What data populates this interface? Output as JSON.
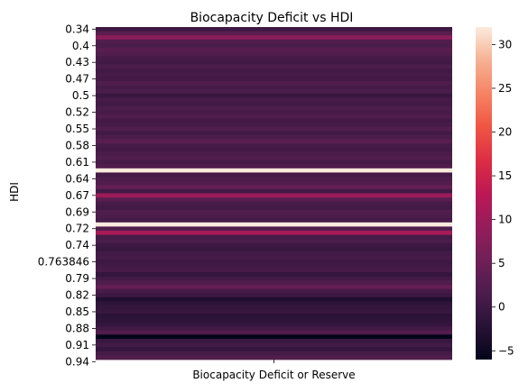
{
  "chart_data": {
    "type": "heatmap",
    "title": "Biocapacity Deficit vs HDI",
    "ylabel": "HDI",
    "xlabel": "",
    "x_categories": [
      "Biocapacity Deficit or Reserve"
    ],
    "y_tick_labels": [
      "0.34",
      "0.4",
      "0.43",
      "0.47",
      "0.5",
      "0.52",
      "0.55",
      "0.58",
      "0.61",
      "0.64",
      "0.67",
      "0.69",
      "0.72",
      "0.74",
      "0.763846",
      "0.79",
      "0.82",
      "0.85",
      "0.88",
      "0.91",
      "0.94"
    ],
    "values": [
      0.0,
      3.0,
      8.0,
      2.0,
      1.5,
      3.0,
      2.0,
      1.0,
      0.5,
      1.5,
      0.5,
      1.0,
      0.5,
      2.0,
      1.0,
      1.5,
      -0.5,
      1.0,
      0.5,
      1.5,
      1.0,
      2.0,
      0.5,
      1.0,
      2.0,
      0.5,
      1.5,
      3.0,
      1.0,
      0.5,
      1.5,
      2.0,
      1.0,
      2.0,
      32.0,
      0.5,
      1.5,
      2.0,
      4.0,
      0.5,
      10.0,
      3.0,
      1.0,
      0.5,
      2.0,
      1.5,
      1.0,
      32.0,
      2.0,
      11.0,
      1.0,
      1.5,
      0.0,
      -0.5,
      0.5,
      1.0,
      0.0,
      0.5,
      1.0,
      -1.0,
      0.5,
      2.0,
      4.0,
      1.0,
      0.0,
      -3.0,
      -1.5,
      -1.0,
      -0.5,
      -2.0,
      -1.5,
      -1.0,
      0.5,
      2.0,
      -6.0,
      -0.5,
      0.5,
      -1.0,
      1.0,
      2.0
    ],
    "colorbar": {
      "min": -6,
      "max": 32,
      "ticks": [
        -5,
        0,
        5,
        10,
        15,
        20,
        25,
        30
      ]
    },
    "colormap": "rocket"
  }
}
